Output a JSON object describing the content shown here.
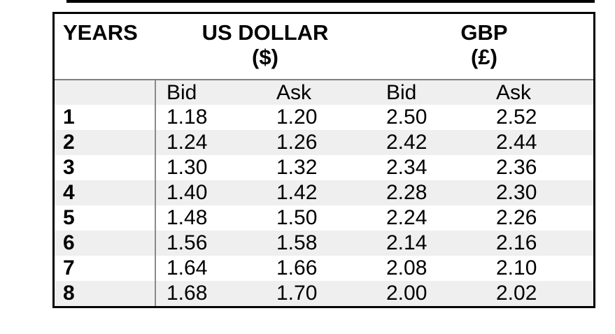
{
  "colors": {
    "row_shade": "#efefef",
    "grid_line": "#8a8a8a",
    "outer_border": "#000000",
    "text": "#000000",
    "background": "#ffffff"
  },
  "table": {
    "header": {
      "years_label": "YEARS",
      "usd_line1": "US DOLLAR",
      "usd_line2": "($)",
      "gbp_line1": "GBP",
      "gbp_line2": "(£)"
    },
    "subheader": {
      "usd_bid": "Bid",
      "usd_ask": "Ask",
      "gbp_bid": "Bid",
      "gbp_ask": "Ask"
    },
    "rows": [
      {
        "year": "1",
        "usd_bid": "1.18",
        "usd_ask": "1.20",
        "gbp_bid": "2.50",
        "gbp_ask": "2.52"
      },
      {
        "year": "2",
        "usd_bid": "1.24",
        "usd_ask": "1.26",
        "gbp_bid": "2.42",
        "gbp_ask": "2.44"
      },
      {
        "year": "3",
        "usd_bid": "1.30",
        "usd_ask": "1.32",
        "gbp_bid": "2.34",
        "gbp_ask": "2.36"
      },
      {
        "year": "4",
        "usd_bid": "1.40",
        "usd_ask": "1.42",
        "gbp_bid": "2.28",
        "gbp_ask": "2.30"
      },
      {
        "year": "5",
        "usd_bid": "1.48",
        "usd_ask": "1.50",
        "gbp_bid": "2.24",
        "gbp_ask": "2.26"
      },
      {
        "year": "6",
        "usd_bid": "1.56",
        "usd_ask": "1.58",
        "gbp_bid": "2.14",
        "gbp_ask": "2.16"
      },
      {
        "year": "7",
        "usd_bid": "1.64",
        "usd_ask": "1.66",
        "gbp_bid": "2.08",
        "gbp_ask": "2.10"
      },
      {
        "year": "8",
        "usd_bid": "1.68",
        "usd_ask": "1.70",
        "gbp_bid": "2.00",
        "gbp_ask": "2.02"
      }
    ]
  },
  "chart_data": {
    "type": "table",
    "title": "Exchange rate forecasts by year: US Dollar ($) and GBP (£), Bid and Ask",
    "columns": [
      "YEARS",
      "US DOLLAR ($) Bid",
      "US DOLLAR ($) Ask",
      "GBP (£) Bid",
      "GBP (£) Ask"
    ],
    "categories": [
      1,
      2,
      3,
      4,
      5,
      6,
      7,
      8
    ],
    "series": [
      {
        "name": "US DOLLAR ($) Bid",
        "values": [
          1.18,
          1.24,
          1.3,
          1.4,
          1.48,
          1.56,
          1.64,
          1.68
        ]
      },
      {
        "name": "US DOLLAR ($) Ask",
        "values": [
          1.2,
          1.26,
          1.32,
          1.42,
          1.5,
          1.58,
          1.66,
          1.7
        ]
      },
      {
        "name": "GBP (£) Bid",
        "values": [
          2.5,
          2.42,
          2.34,
          2.28,
          2.24,
          2.14,
          2.08,
          2.0
        ]
      },
      {
        "name": "GBP (£) Ask",
        "values": [
          2.52,
          2.44,
          2.36,
          2.3,
          2.26,
          2.16,
          2.1,
          2.02
        ]
      }
    ],
    "layout": {
      "grid": "alternating row shading",
      "legend": "none"
    }
  }
}
